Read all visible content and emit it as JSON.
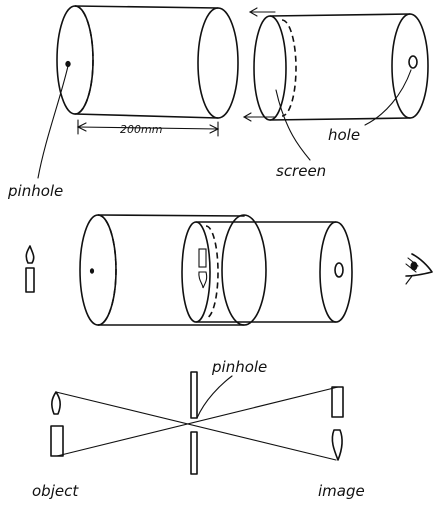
{
  "labels": {
    "dimension": "200mm",
    "pinhole_top": "pinhole",
    "hole": "hole",
    "screen": "screen",
    "pinhole_bottom": "pinhole",
    "object": "object",
    "image": "image"
  }
}
